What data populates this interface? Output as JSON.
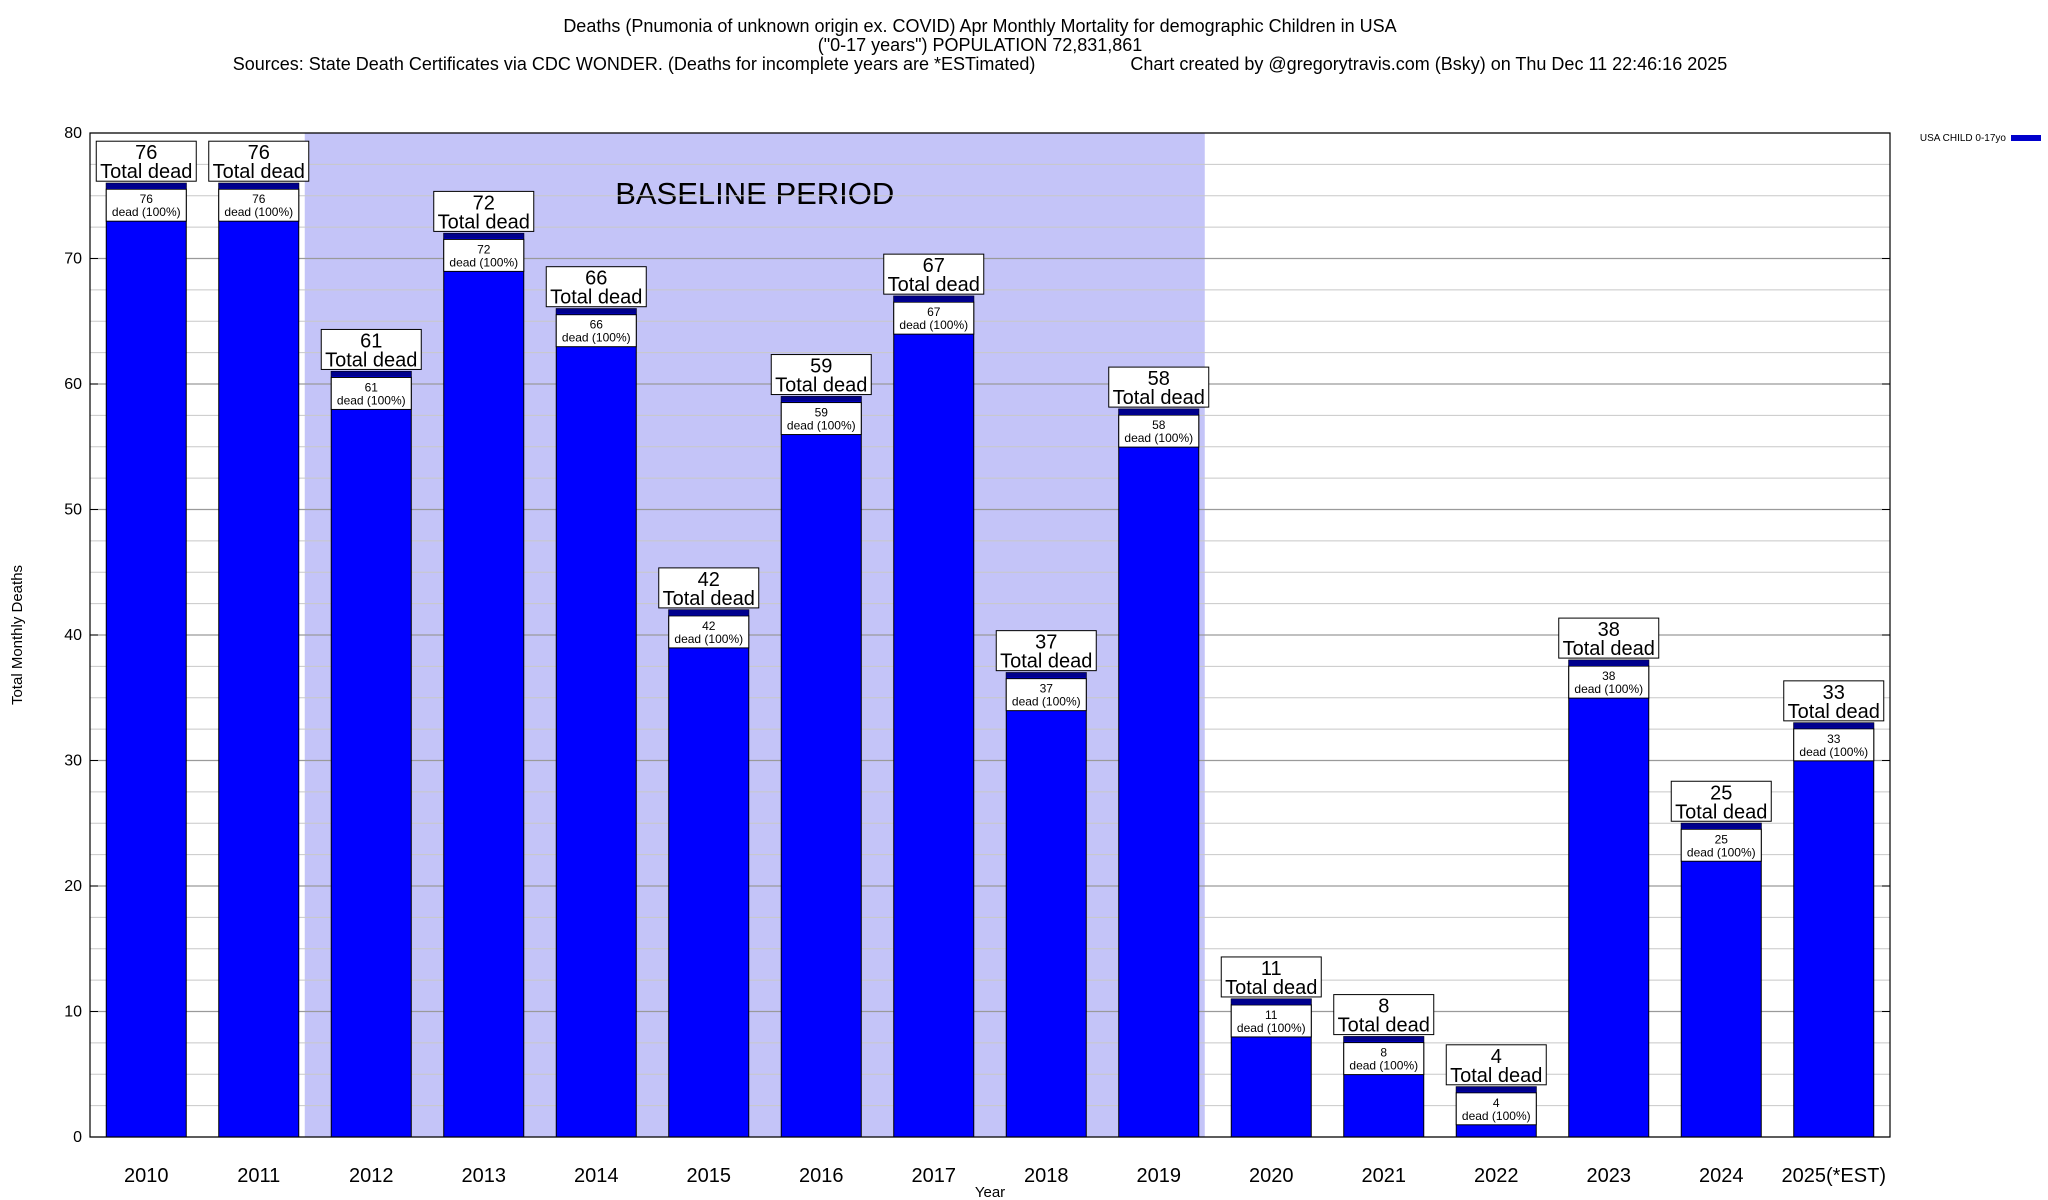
{
  "chart_data": {
    "type": "bar",
    "title": "Deaths (Pnumonia of unknown origin ex. COVID) Apr Monthly Mortality for demographic Children in USA",
    "subtitle": "(\"0-17 years\") POPULATION 72,831,861",
    "sources": "Sources: State Death Certificates via CDC WONDER. (Deaths for incomplete years are *ESTimated)",
    "credit": "Chart created by @gregorytravis.com (Bsky) on Thu Dec 11 22:46:16 2025",
    "xlabel": "Year",
    "ylabel": "Total Monthly Deaths",
    "ylim": [
      0,
      80
    ],
    "yticks": [
      0,
      10,
      20,
      30,
      40,
      50,
      60,
      70,
      80
    ],
    "grid": true,
    "legend_position": "top-right",
    "categories": [
      "2010",
      "2011",
      "2012",
      "2013",
      "2014",
      "2015",
      "2016",
      "2017",
      "2018",
      "2019",
      "2020",
      "2021",
      "2022",
      "2023",
      "2024",
      "2025(*EST)"
    ],
    "series": [
      {
        "name": "USA CHILD 0-17yo",
        "color": "#0000ff",
        "values": [
          76,
          76,
          61,
          72,
          66,
          42,
          59,
          67,
          37,
          58,
          11,
          8,
          4,
          38,
          25,
          33
        ]
      }
    ],
    "total_label": "Total dead",
    "inner_label": "dead (100%)",
    "annotation": {
      "text": "BASELINE PERIOD",
      "from_category": "2012",
      "to_category": "2019",
      "color": "#c4c4f8"
    }
  }
}
